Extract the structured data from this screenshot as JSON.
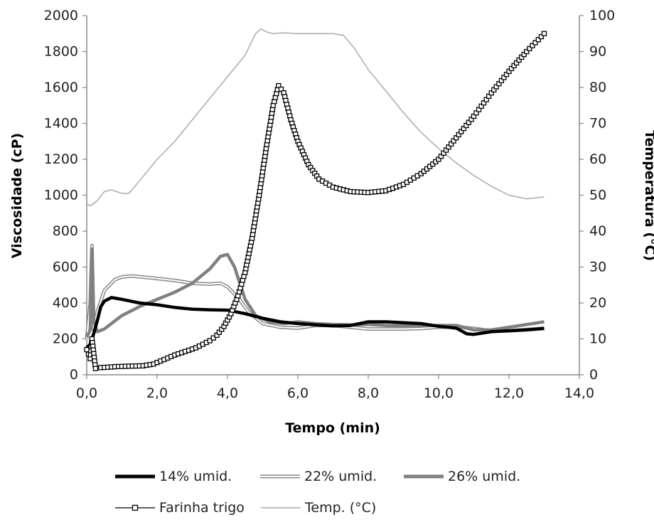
{
  "chart_data": {
    "type": "line",
    "xlabel": "Tempo (min)",
    "ylabel": "Viscosidade (cP)",
    "y2label": "Temperatura (°C)",
    "xlim": [
      0,
      14
    ],
    "ylim": [
      0,
      2000
    ],
    "y2lim": [
      0,
      100
    ],
    "x_ticks": [
      "0,0",
      "2,0",
      "4,0",
      "6,0",
      "8,0",
      "10,0",
      "12,0",
      "14,0"
    ],
    "y_ticks": [
      "0",
      "200",
      "400",
      "600",
      "800",
      "1000",
      "1200",
      "1400",
      "1600",
      "1800",
      "2000"
    ],
    "y2_ticks": [
      "0",
      "10",
      "20",
      "30",
      "40",
      "50",
      "60",
      "70",
      "80",
      "90",
      "100"
    ],
    "grid": false,
    "legend_position": "bottom",
    "series": [
      {
        "name": "14% umid.",
        "axis": "left",
        "style": "thick-black",
        "color": "#000000",
        "points": [
          [
            0.0,
            150
          ],
          [
            0.1,
            170
          ],
          [
            0.15,
            200
          ],
          [
            0.2,
            230
          ],
          [
            0.3,
            300
          ],
          [
            0.4,
            380
          ],
          [
            0.5,
            410
          ],
          [
            0.7,
            430
          ],
          [
            1.0,
            420
          ],
          [
            1.5,
            400
          ],
          [
            2.0,
            390
          ],
          [
            2.5,
            375
          ],
          [
            3.0,
            365
          ],
          [
            3.5,
            362
          ],
          [
            4.0,
            360
          ],
          [
            4.5,
            340
          ],
          [
            5.0,
            315
          ],
          [
            5.5,
            295
          ],
          [
            6.0,
            285
          ],
          [
            6.5,
            278
          ],
          [
            7.0,
            272
          ],
          [
            7.5,
            275
          ],
          [
            8.0,
            295
          ],
          [
            8.5,
            295
          ],
          [
            9.0,
            290
          ],
          [
            9.5,
            285
          ],
          [
            10.0,
            270
          ],
          [
            10.5,
            260
          ],
          [
            10.8,
            228
          ],
          [
            11.0,
            225
          ],
          [
            11.5,
            240
          ],
          [
            12.0,
            245
          ],
          [
            12.5,
            250
          ],
          [
            13.0,
            258
          ]
        ]
      },
      {
        "name": "22% umid.",
        "axis": "left",
        "style": "double-gray",
        "color": "#888888",
        "points": [
          [
            0.0,
            200
          ],
          [
            0.1,
            400
          ],
          [
            0.15,
            720
          ],
          [
            0.2,
            250
          ],
          [
            0.3,
            350
          ],
          [
            0.5,
            470
          ],
          [
            0.8,
            530
          ],
          [
            1.0,
            545
          ],
          [
            1.3,
            550
          ],
          [
            1.8,
            540
          ],
          [
            2.5,
            525
          ],
          [
            3.0,
            510
          ],
          [
            3.5,
            505
          ],
          [
            3.8,
            510
          ],
          [
            4.0,
            490
          ],
          [
            4.3,
            430
          ],
          [
            4.6,
            350
          ],
          [
            5.0,
            285
          ],
          [
            5.5,
            265
          ],
          [
            6.0,
            260
          ],
          [
            6.5,
            275
          ],
          [
            7.0,
            275
          ],
          [
            7.5,
            265
          ],
          [
            8.0,
            255
          ],
          [
            8.5,
            255
          ],
          [
            9.0,
            255
          ],
          [
            9.5,
            258
          ],
          [
            10.0,
            265
          ],
          [
            10.5,
            268
          ],
          [
            11.0,
            258
          ],
          [
            11.5,
            245
          ],
          [
            12.0,
            245
          ],
          [
            12.5,
            252
          ],
          [
            13.0,
            260
          ]
        ]
      },
      {
        "name": "26% umid.",
        "axis": "left",
        "style": "thick-gray",
        "color": "#808080",
        "points": [
          [
            0.0,
            210
          ],
          [
            0.1,
            250
          ],
          [
            0.15,
            700
          ],
          [
            0.2,
            300
          ],
          [
            0.3,
            240
          ],
          [
            0.5,
            255
          ],
          [
            1.0,
            330
          ],
          [
            1.5,
            380
          ],
          [
            2.0,
            420
          ],
          [
            2.5,
            460
          ],
          [
            3.0,
            510
          ],
          [
            3.5,
            590
          ],
          [
            3.8,
            660
          ],
          [
            4.0,
            670
          ],
          [
            4.2,
            600
          ],
          [
            4.5,
            420
          ],
          [
            4.8,
            330
          ],
          [
            5.2,
            295
          ],
          [
            5.6,
            285
          ],
          [
            6.0,
            295
          ],
          [
            6.5,
            285
          ],
          [
            7.0,
            280
          ],
          [
            7.5,
            278
          ],
          [
            8.0,
            280
          ],
          [
            8.5,
            275
          ],
          [
            9.0,
            272
          ],
          [
            9.5,
            272
          ],
          [
            10.0,
            275
          ],
          [
            10.5,
            275
          ],
          [
            11.0,
            250
          ],
          [
            11.5,
            250
          ],
          [
            12.0,
            265
          ],
          [
            12.5,
            280
          ],
          [
            13.0,
            295
          ]
        ]
      },
      {
        "name": "Farinha trigo",
        "axis": "left",
        "style": "square-markers",
        "color": "#000000",
        "points": [
          [
            0.0,
            140
          ],
          [
            0.1,
            90
          ],
          [
            0.15,
            200
          ],
          [
            0.25,
            35
          ],
          [
            0.4,
            40
          ],
          [
            0.8,
            45
          ],
          [
            1.2,
            48
          ],
          [
            1.6,
            50
          ],
          [
            1.9,
            60
          ],
          [
            2.2,
            85
          ],
          [
            2.5,
            110
          ],
          [
            2.8,
            130
          ],
          [
            3.1,
            150
          ],
          [
            3.5,
            190
          ],
          [
            3.7,
            220
          ],
          [
            3.9,
            270
          ],
          [
            4.1,
            340
          ],
          [
            4.3,
            440
          ],
          [
            4.5,
            570
          ],
          [
            4.7,
            760
          ],
          [
            4.9,
            1000
          ],
          [
            5.1,
            1260
          ],
          [
            5.3,
            1500
          ],
          [
            5.45,
            1610
          ],
          [
            5.6,
            1570
          ],
          [
            5.8,
            1420
          ],
          [
            6.0,
            1300
          ],
          [
            6.3,
            1170
          ],
          [
            6.6,
            1090
          ],
          [
            7.0,
            1045
          ],
          [
            7.5,
            1020
          ],
          [
            8.0,
            1015
          ],
          [
            8.5,
            1025
          ],
          [
            9.0,
            1060
          ],
          [
            9.5,
            1120
          ],
          [
            10.0,
            1200
          ],
          [
            10.5,
            1320
          ],
          [
            11.0,
            1440
          ],
          [
            11.5,
            1570
          ],
          [
            12.0,
            1690
          ],
          [
            12.5,
            1800
          ],
          [
            13.0,
            1900
          ]
        ]
      },
      {
        "name": "Temp. (°C)",
        "axis": "right",
        "style": "thin-gray",
        "color": "#aaaaaa",
        "points": [
          [
            0.0,
            47.5
          ],
          [
            0.1,
            47.0
          ],
          [
            0.3,
            48.5
          ],
          [
            0.5,
            51.0
          ],
          [
            0.7,
            51.5
          ],
          [
            1.0,
            50.5
          ],
          [
            1.2,
            50.5
          ],
          [
            1.5,
            54.0
          ],
          [
            2.0,
            60.0
          ],
          [
            2.5,
            65.0
          ],
          [
            3.0,
            71.0
          ],
          [
            3.5,
            77.0
          ],
          [
            4.0,
            83.0
          ],
          [
            4.5,
            89.0
          ],
          [
            4.8,
            95.0
          ],
          [
            4.95,
            96.3
          ],
          [
            5.1,
            95.5
          ],
          [
            5.3,
            95.0
          ],
          [
            5.6,
            95.2
          ],
          [
            6.0,
            95.0
          ],
          [
            6.5,
            95.0
          ],
          [
            7.0,
            95.0
          ],
          [
            7.3,
            94.5
          ],
          [
            7.6,
            91.0
          ],
          [
            8.0,
            85.0
          ],
          [
            8.5,
            79.0
          ],
          [
            9.0,
            73.0
          ],
          [
            9.5,
            67.5
          ],
          [
            10.0,
            63.0
          ],
          [
            10.5,
            59.0
          ],
          [
            11.0,
            55.5
          ],
          [
            11.5,
            52.5
          ],
          [
            12.0,
            50.0
          ],
          [
            12.5,
            49.0
          ],
          [
            13.0,
            49.5
          ]
        ]
      }
    ]
  }
}
